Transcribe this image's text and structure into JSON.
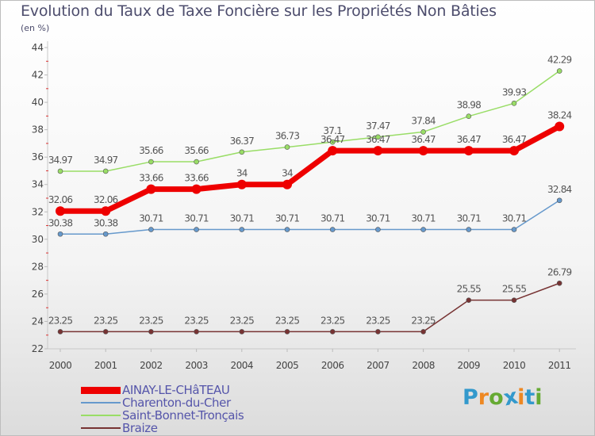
{
  "chart_data": {
    "type": "line",
    "title": "Evolution du Taux de Taxe Foncière sur les Propriétés Non Bâties",
    "subtitle": "(en %)",
    "xlabel": "",
    "ylabel": "",
    "x": [
      "2000",
      "2001",
      "2002",
      "2003",
      "2004",
      "2005",
      "2006",
      "2007",
      "2008",
      "2009",
      "2010",
      "2011"
    ],
    "ylim": [
      22,
      44
    ],
    "yticks": [
      22,
      24,
      26,
      28,
      30,
      32,
      34,
      36,
      38,
      40,
      42,
      44
    ],
    "grid": false,
    "series": [
      {
        "name": "AINAY-LE-CHâTEAU",
        "color": "#ee0000",
        "values": [
          32.06,
          32.06,
          33.66,
          33.66,
          34,
          34,
          36.47,
          36.47,
          36.47,
          36.47,
          36.47,
          38.24
        ],
        "labels": [
          "32.06",
          "32.06",
          "33.66",
          "33.66",
          "34",
          "34",
          "36.47",
          "36.47",
          "36.47",
          "36.47",
          "36.47",
          "38.24"
        ]
      },
      {
        "name": "Charenton-du-Cher",
        "color": "#6699cc",
        "values": [
          30.38,
          30.38,
          30.71,
          30.71,
          30.71,
          30.71,
          30.71,
          30.71,
          30.71,
          30.71,
          30.71,
          32.84
        ],
        "labels": [
          "30.38",
          "30.38",
          "30.71",
          "30.71",
          "30.71",
          "30.71",
          "30.71",
          "30.71",
          "30.71",
          "30.71",
          "30.71",
          "32.84"
        ]
      },
      {
        "name": "Saint-Bonnet-Tronçais",
        "color": "#99dd66",
        "values": [
          34.97,
          34.97,
          35.66,
          35.66,
          36.37,
          36.73,
          37.1,
          37.47,
          37.84,
          38.98,
          39.93,
          42.29
        ],
        "labels": [
          "34.97",
          "34.97",
          "35.66",
          "35.66",
          "36.37",
          "36.73",
          "37.1",
          "37.47",
          "37.84",
          "38.98",
          "39.93",
          "42.29"
        ]
      },
      {
        "name": "Braize",
        "color": "#773333",
        "values": [
          23.25,
          23.25,
          23.25,
          23.25,
          23.25,
          23.25,
          23.25,
          23.25,
          23.25,
          25.55,
          25.55,
          26.79
        ],
        "labels": [
          "23.25",
          "23.25",
          "23.25",
          "23.25",
          "23.25",
          "23.25",
          "23.25",
          "23.25",
          "23.25",
          "25.55",
          "25.55",
          "26.79"
        ]
      }
    ]
  },
  "logo": {
    "text": "Proxiti",
    "letters": [
      "P",
      "r",
      "o",
      "x",
      "i",
      "t",
      "i"
    ],
    "colors": [
      "#3399cc",
      "#ee8822",
      "#66aa33",
      "#3399cc",
      "#ee8822",
      "#3399cc",
      "#66aa33"
    ]
  }
}
